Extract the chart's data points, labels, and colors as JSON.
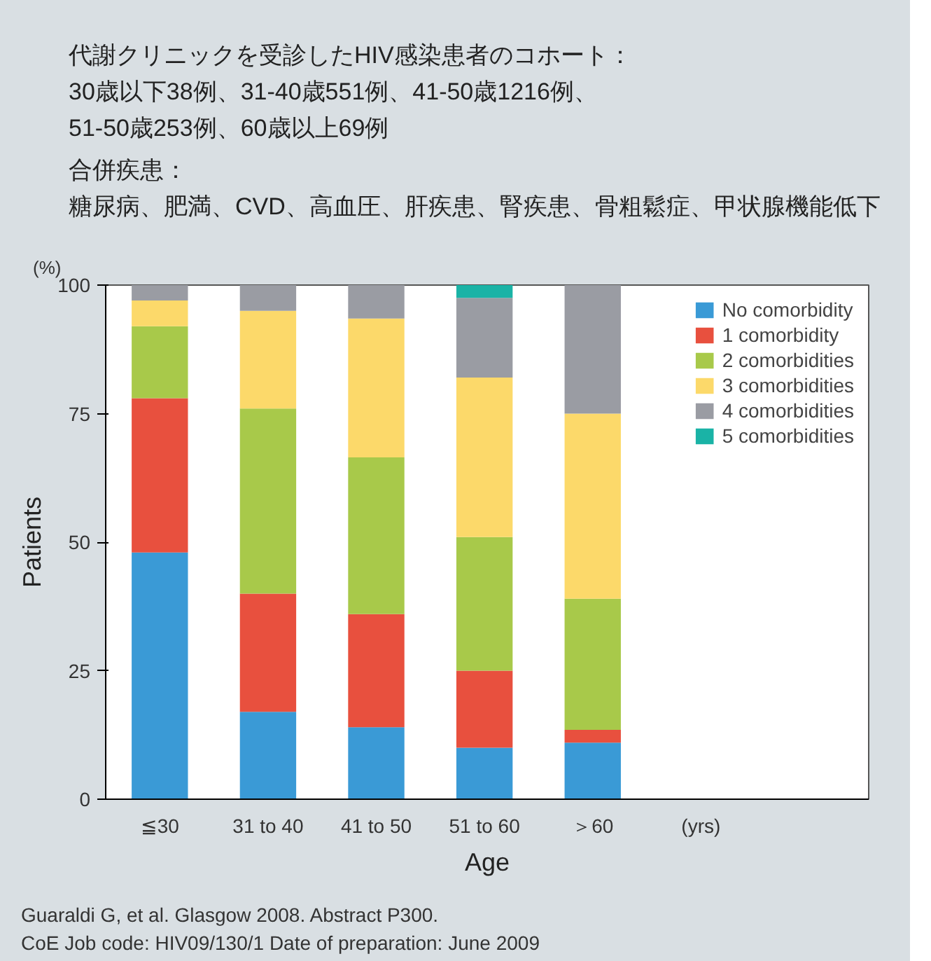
{
  "chart_data": {
    "type": "bar",
    "stacked": true,
    "title": "代謝クリニックを受診したHIV感染患者のコホート：\n30歳以下38例、31-40歳551例、41-50歳1216例、\n51-50歳253例、60歳以上69例",
    "subtitle": "合併疾患：",
    "xlabel": "Age",
    "ylabel": "Patients",
    "categories": [
      "≦30",
      "31 to 40",
      "41 to 50",
      "51 to 60",
      "＞60"
    ],
    "series": [
      {
        "name": "No comorbidity",
        "color": "#3a9ad6",
        "values": [
          48,
          17,
          14,
          10,
          11
        ]
      },
      {
        "name": "1 comorbidity",
        "color": "#e8503e",
        "values": [
          30,
          23,
          22,
          15,
          2.5
        ]
      },
      {
        "name": "2 comorbidities",
        "color": "#a8c94a",
        "values": [
          14,
          36,
          30.5,
          26,
          25.5
        ]
      },
      {
        "name": "3 comorbidities",
        "color": "#fcd96a",
        "values": [
          5,
          19,
          27,
          31,
          36
        ]
      },
      {
        "name": "4 comorbidities",
        "color": "#9a9ca3",
        "values": [
          3,
          5,
          6.5,
          15.5,
          25
        ]
      },
      {
        "name": "5 comorbidities",
        "color": "#1ab3a6",
        "values": [
          0,
          0,
          0,
          2.5,
          0
        ]
      }
    ],
    "ylim": [
      0,
      100
    ],
    "yticks": [
      0,
      25,
      50,
      75,
      100
    ],
    "grid": false,
    "legend": "top right",
    "annotations": [
      "(%)",
      "(yrs)",
      "糖尿病、肥満、CVD、高血圧、肝疾患、腎疾患、骨粗鬆症、甲状腺機能低下",
      "Guaraldi G, et al. Glasgow 2008. Abstract P300.",
      "CoE Job code: HIV09/130/1 Date of preparation: June 2009"
    ]
  }
}
